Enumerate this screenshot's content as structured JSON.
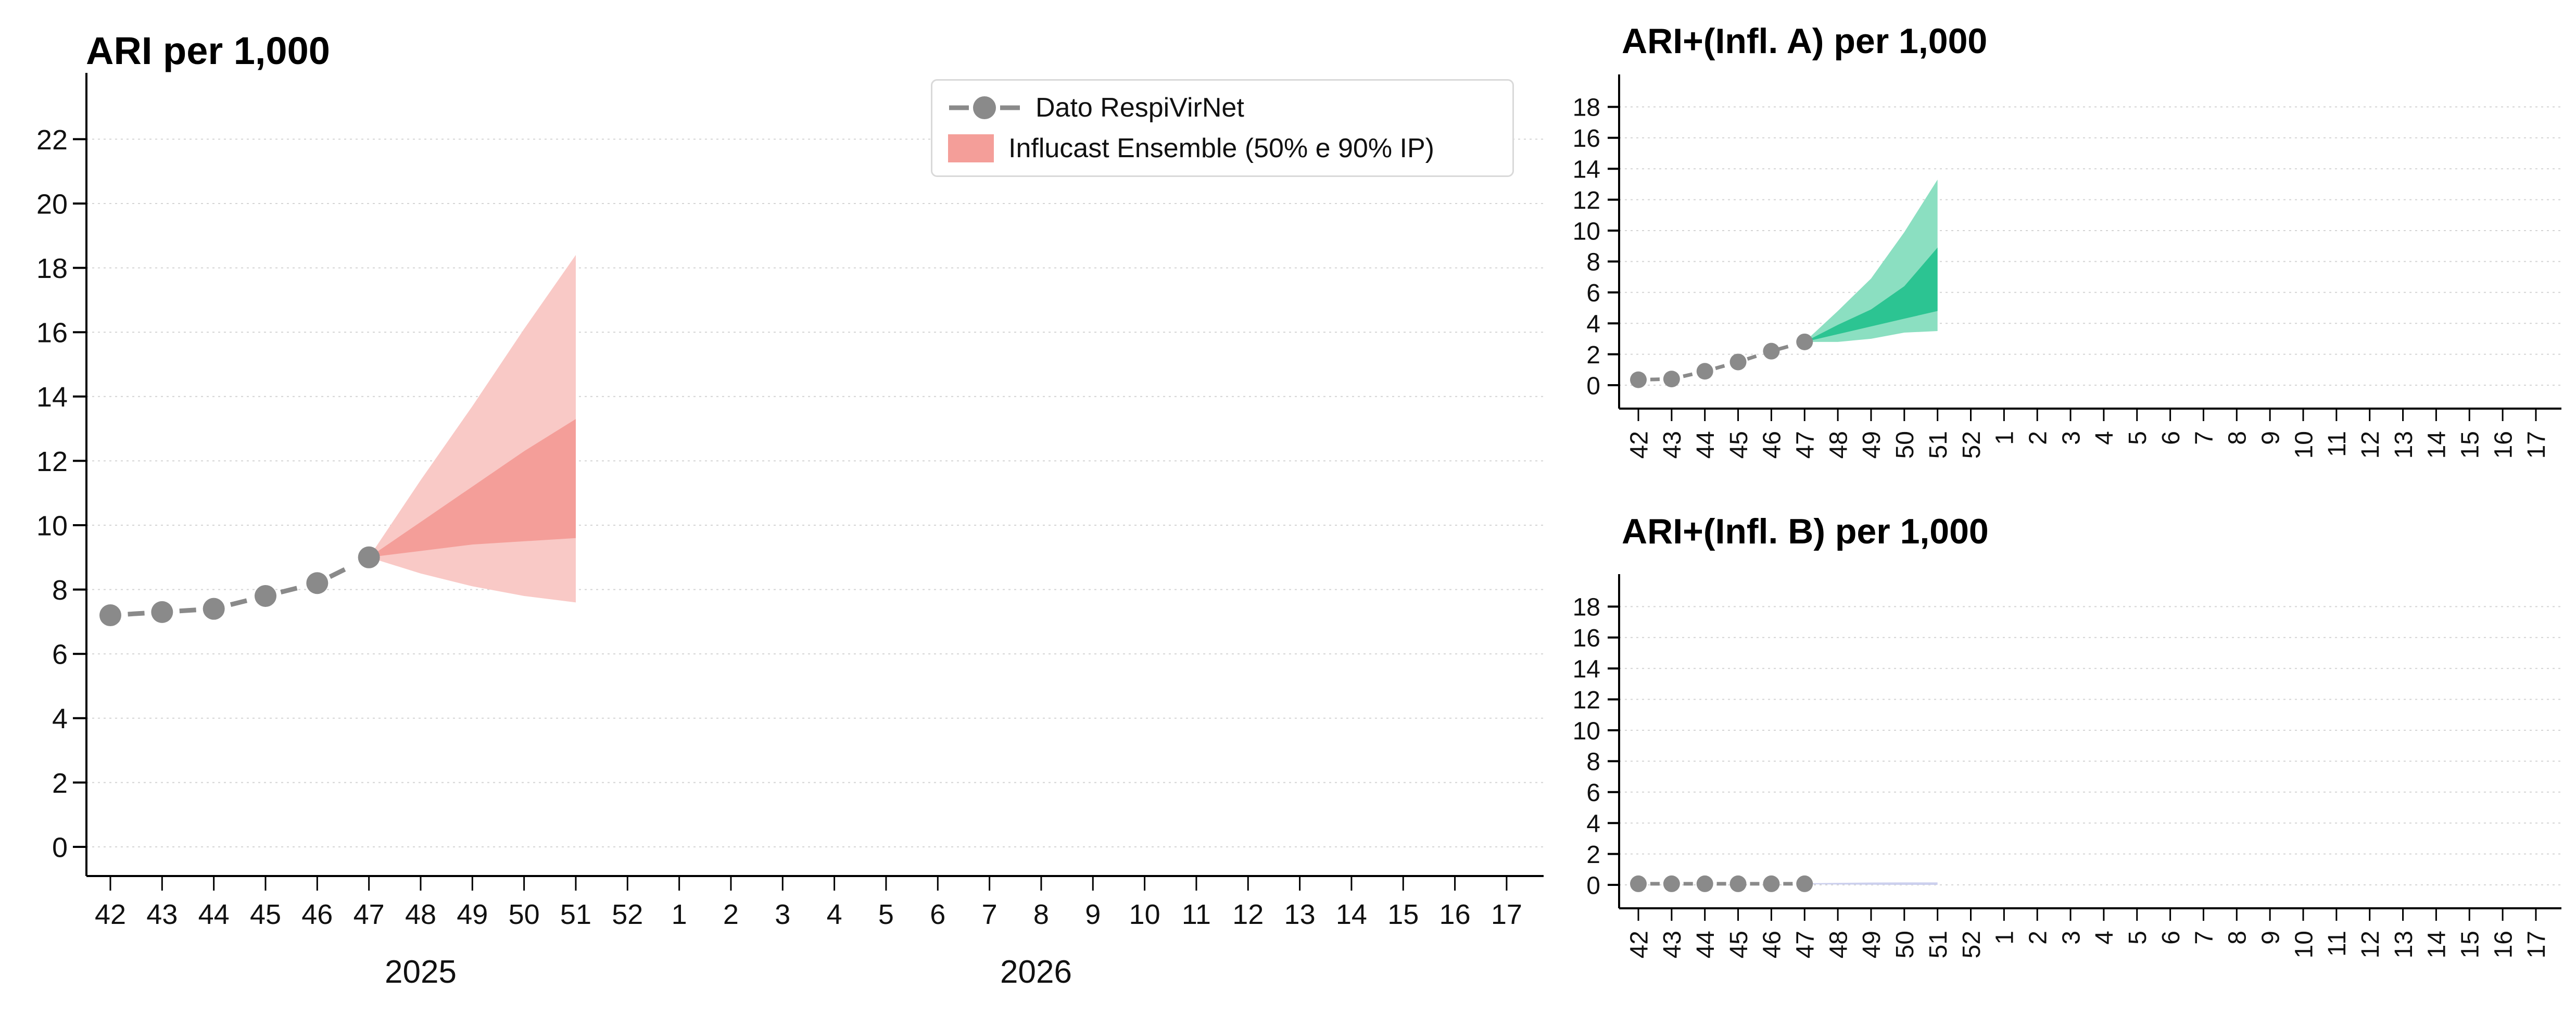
{
  "page": {
    "background": "#ffffff"
  },
  "legend": {
    "border_color": "#d9d9d9",
    "items": [
      {
        "label": "Dato RespiVirNet",
        "marker": "gray-dot-dashed-line",
        "color": "#8a8a8a"
      },
      {
        "label": "Influcast Ensemble (50% e 90% IP)",
        "marker": "filled-band",
        "color": "#f49e99"
      }
    ]
  },
  "chart_data": [
    {
      "id": "main",
      "type": "line",
      "title": "ARI per 1,000",
      "xlabel": "",
      "ylabel": "",
      "ylim": [
        0,
        23.5
      ],
      "grid": "horizontal-dotted",
      "x_tick_labels": [
        "42",
        "43",
        "44",
        "45",
        "46",
        "47",
        "48",
        "49",
        "50",
        "51",
        "52",
        "1",
        "2",
        "3",
        "4",
        "5",
        "6",
        "7",
        "8",
        "9",
        "10",
        "11",
        "12",
        "13",
        "14",
        "15",
        "16",
        "17"
      ],
      "year_labels": [
        "2025",
        "2026"
      ],
      "y_ticks": [
        0,
        2,
        4,
        6,
        8,
        10,
        12,
        14,
        16,
        18,
        20,
        22
      ],
      "observed": {
        "name": "Dato RespiVirNet",
        "weeks": [
          42,
          43,
          44,
          45,
          46,
          47
        ],
        "values": [
          7.2,
          7.3,
          7.4,
          7.8,
          8.2,
          9.0
        ],
        "color": "#8a8a8a"
      },
      "forecast": {
        "name": "Influcast Ensemble (50% e 90% IP)",
        "weeks": [
          47,
          48,
          49,
          50,
          51
        ],
        "p90_upper": [
          9.0,
          11.4,
          13.7,
          16.1,
          18.4
        ],
        "p50_upper": [
          9.0,
          10.1,
          11.2,
          12.3,
          13.3
        ],
        "p50_lower": [
          9.0,
          9.2,
          9.4,
          9.5,
          9.6
        ],
        "p90_lower": [
          9.0,
          8.5,
          8.1,
          7.8,
          7.6
        ],
        "color_90": "#f9c9c6",
        "color_50": "#f49e99"
      }
    },
    {
      "id": "infl_a",
      "type": "line",
      "title": "ARI+(Infl. A) per 1,000",
      "xlabel": "",
      "ylabel": "",
      "ylim": [
        0,
        19.5
      ],
      "grid": "horizontal-dotted",
      "x_tick_labels": [
        "42",
        "43",
        "44",
        "45",
        "46",
        "47",
        "48",
        "49",
        "50",
        "51",
        "52",
        "1",
        "2",
        "3",
        "4",
        "5",
        "6",
        "7",
        "8",
        "9",
        "10",
        "11",
        "12",
        "13",
        "14",
        "15",
        "16",
        "17"
      ],
      "y_ticks": [
        0,
        2,
        4,
        6,
        8,
        10,
        12,
        14,
        16,
        18
      ],
      "observed": {
        "name": "Dato RespiVirNet",
        "weeks": [
          42,
          43,
          44,
          45,
          46,
          47
        ],
        "values": [
          0.35,
          0.4,
          0.9,
          1.5,
          2.2,
          2.8
        ],
        "color": "#8a8a8a"
      },
      "forecast": {
        "name": "Influcast Ensemble (50% e 90% IP)",
        "weeks": [
          47,
          48,
          49,
          50,
          51
        ],
        "p90_upper": [
          2.8,
          4.8,
          6.9,
          9.9,
          13.3
        ],
        "p50_upper": [
          2.8,
          3.9,
          4.9,
          6.4,
          8.9
        ],
        "p50_lower": [
          2.8,
          3.3,
          3.8,
          4.3,
          4.8
        ],
        "p90_lower": [
          2.8,
          2.8,
          3.0,
          3.4,
          3.5
        ],
        "color_90": "#8bdfc1",
        "color_50": "#2cc492"
      }
    },
    {
      "id": "infl_b",
      "type": "line",
      "title": "ARI+(Infl. B) per 1,000",
      "xlabel": "",
      "ylabel": "",
      "ylim": [
        0,
        19.5
      ],
      "grid": "horizontal-dotted",
      "x_tick_labels": [
        "42",
        "43",
        "44",
        "45",
        "46",
        "47",
        "48",
        "49",
        "50",
        "51",
        "52",
        "1",
        "2",
        "3",
        "4",
        "5",
        "6",
        "7",
        "8",
        "9",
        "10",
        "11",
        "12",
        "13",
        "14",
        "15",
        "16",
        "17"
      ],
      "y_ticks": [
        0,
        2,
        4,
        6,
        8,
        10,
        12,
        14,
        16,
        18
      ],
      "observed": {
        "name": "Dato RespiVirNet",
        "weeks": [
          42,
          43,
          44,
          45,
          46,
          47
        ],
        "values": [
          0.07,
          0.07,
          0.07,
          0.07,
          0.07,
          0.07
        ],
        "color": "#8a8a8a"
      },
      "forecast": {
        "name": "Influcast Ensemble (50% e 90% IP)",
        "weeks": [
          47,
          48,
          49,
          50,
          51
        ],
        "p90_upper": [
          0.1,
          0.13,
          0.15,
          0.16,
          0.16
        ],
        "p50_upper": [
          0.07,
          0.07,
          0.07,
          0.07,
          0.07
        ],
        "p50_lower": [
          0.07,
          0.07,
          0.07,
          0.07,
          0.07
        ],
        "p90_lower": [
          0.04,
          0.02,
          0.01,
          0.0,
          0.0
        ],
        "color_90": "#ccd0ee",
        "color_50": "#ccd0ee"
      }
    }
  ]
}
